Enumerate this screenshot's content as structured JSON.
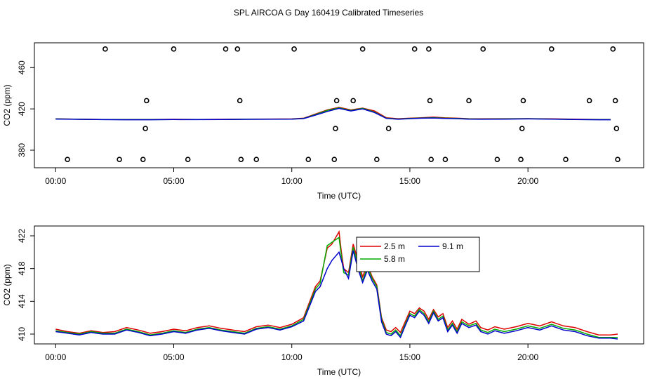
{
  "title": "SPL AIRCOA G  Day 160419  Calibrated Timeseries",
  "colors": {
    "h2_5": "#dd0000",
    "h5_8": "#00aa00",
    "h9_1": "#0000cc",
    "axis": "#000000"
  },
  "chart_data": [
    {
      "type": "line",
      "title": "SPL AIRCOA G  Day 160419  Calibrated Timeseries",
      "xlabel": "Time (UTC)",
      "ylabel": "CO2 (ppm)",
      "xlim": [
        -0.9,
        24.9
      ],
      "ylim": [
        363,
        484
      ],
      "x_ticks": [
        0,
        5,
        10,
        15,
        20
      ],
      "x_tick_labels": [
        "00:00",
        "05:00",
        "10:00",
        "15:00",
        "20:00"
      ],
      "y_ticks": [
        380,
        420,
        460
      ],
      "y_tick_labels": [
        "380",
        "420",
        "460"
      ],
      "series": [
        {
          "name": "2.5 m",
          "color": "#dd0000",
          "x": [
            0,
            1,
            2,
            3,
            4,
            5,
            6,
            7,
            8,
            9,
            10,
            10.5,
            11,
            11.5,
            12,
            12.5,
            13,
            13.5,
            14,
            14.5,
            15,
            15.5,
            16,
            16.5,
            17,
            17.5,
            18,
            19,
            20,
            21,
            22,
            23,
            23.5
          ],
          "y": [
            410.4,
            410,
            409.8,
            409.7,
            409.8,
            409.9,
            409.8,
            409.9,
            410.1,
            410.2,
            410.3,
            411,
            415,
            419,
            421.5,
            419,
            420.8,
            418,
            411.5,
            410.5,
            411,
            411.5,
            412,
            411.3,
            411,
            410.5,
            410.4,
            410.5,
            410.6,
            410.4,
            410,
            409.8,
            409.8
          ]
        },
        {
          "name": "5.8 m",
          "color": "#00aa00",
          "x": [
            0,
            1,
            2,
            3,
            4,
            5,
            6,
            7,
            8,
            9,
            10,
            10.5,
            11,
            11.5,
            12,
            12.5,
            13,
            13.5,
            14,
            14.5,
            15,
            15.5,
            16,
            16.5,
            17,
            17.5,
            18,
            19,
            20,
            21,
            22,
            23,
            23.5
          ],
          "y": [
            410.3,
            410,
            409.7,
            409.6,
            409.6,
            409.8,
            409.7,
            409.8,
            410,
            410.1,
            410.2,
            410.8,
            414.5,
            418.5,
            421,
            418.5,
            420.5,
            417,
            411,
            410.2,
            410.8,
            411.2,
            411.5,
            411,
            410.7,
            410.3,
            410.2,
            410.3,
            410.5,
            410.2,
            409.8,
            409.6,
            409.6
          ]
        },
        {
          "name": "9.1 m",
          "color": "#0000cc",
          "x": [
            0,
            1,
            2,
            3,
            4,
            5,
            6,
            7,
            8,
            9,
            10,
            10.5,
            11,
            11.5,
            12,
            12.5,
            13,
            13.5,
            14,
            14.5,
            15,
            15.5,
            16,
            16.5,
            17,
            17.5,
            18,
            19,
            20,
            21,
            22,
            23,
            23.5
          ],
          "y": [
            410.2,
            409.9,
            409.6,
            409.5,
            409.5,
            409.7,
            409.6,
            409.7,
            409.9,
            410,
            410.1,
            410.6,
            414,
            417.5,
            420.5,
            418,
            420,
            416.5,
            410.8,
            410,
            410.5,
            411,
            411.2,
            410.8,
            410.5,
            410.1,
            410,
            410.1,
            410.3,
            410.1,
            409.7,
            409.5,
            409.5
          ]
        }
      ],
      "points": {
        "x": [
          0.5,
          2.1,
          2.7,
          3.7,
          3.8,
          3.85,
          5.0,
          5.6,
          7.2,
          7.7,
          7.8,
          7.85,
          8.5,
          10.1,
          10.7,
          11.8,
          11.85,
          11.9,
          12.6,
          13.0,
          13.6,
          14.1,
          15.2,
          15.8,
          15.85,
          15.9,
          16.5,
          17.5,
          18.1,
          18.7,
          19.7,
          19.75,
          19.8,
          21.0,
          21.6,
          22.6,
          23.6,
          23.7,
          23.75,
          23.8
        ],
        "y": [
          371,
          478,
          371,
          371,
          401,
          428,
          478,
          371,
          478,
          478,
          428,
          371,
          371,
          478,
          371,
          371,
          401,
          428,
          428,
          478,
          371,
          401,
          478,
          478,
          428,
          371,
          371,
          428,
          478,
          371,
          371,
          401,
          428,
          478,
          371,
          428,
          478,
          428,
          401,
          371
        ]
      }
    },
    {
      "type": "line",
      "xlabel": "Time (UTC)",
      "ylabel": "CO2 (ppm)",
      "xlim": [
        -0.9,
        24.9
      ],
      "ylim": [
        408.8,
        423.2
      ],
      "x_ticks": [
        0,
        5,
        10,
        15,
        20
      ],
      "x_tick_labels": [
        "00:00",
        "05:00",
        "10:00",
        "15:00",
        "20:00"
      ],
      "y_ticks": [
        410,
        414,
        418,
        422
      ],
      "y_tick_labels": [
        "410",
        "414",
        "418",
        "422"
      ],
      "legend": {
        "position": "top-center",
        "entries": [
          "2.5 m",
          "9.1 m",
          "5.8 m"
        ]
      },
      "series": [
        {
          "name": "2.5 m",
          "color": "#dd0000",
          "x": [
            0,
            0.5,
            1,
            1.5,
            2,
            2.5,
            3,
            3.5,
            4,
            4.5,
            5,
            5.5,
            6,
            6.5,
            7,
            7.5,
            8,
            8.5,
            9,
            9.5,
            10,
            10.5,
            11,
            11.2,
            11.5,
            11.7,
            12,
            12.1,
            12.2,
            12.4,
            12.6,
            12.8,
            13,
            13.2,
            13.4,
            13.6,
            13.8,
            14.0,
            14.2,
            14.4,
            14.6,
            14.8,
            15.0,
            15.2,
            15.4,
            15.6,
            15.8,
            16.0,
            16.2,
            16.4,
            16.6,
            16.8,
            17.0,
            17.2,
            17.5,
            17.8,
            18,
            18.3,
            18.6,
            19,
            19.5,
            20,
            20.5,
            21,
            21.5,
            22,
            22.5,
            23,
            23.5,
            23.8
          ],
          "y": [
            410.6,
            410.3,
            410.1,
            410.4,
            410.2,
            410.3,
            410.8,
            410.5,
            410.1,
            410.3,
            410.6,
            410.4,
            410.8,
            411,
            410.7,
            410.5,
            410.3,
            410.9,
            411.1,
            410.8,
            411.2,
            412,
            415.8,
            416.5,
            420.5,
            421,
            422.5,
            420,
            418,
            417.5,
            421,
            419,
            417,
            418.5,
            417,
            416,
            412,
            410.5,
            410.3,
            410.8,
            410.2,
            411.5,
            412.8,
            412.5,
            413.2,
            412.8,
            411.8,
            413,
            412.1,
            412.5,
            410.8,
            411.6,
            410.6,
            411.8,
            411.2,
            411.6,
            410.8,
            410.5,
            410.9,
            410.6,
            410.9,
            411.3,
            411,
            411.5,
            411,
            410.8,
            410.3,
            409.9,
            409.9,
            410.0
          ]
        },
        {
          "name": "5.8 m",
          "color": "#00aa00",
          "x": [
            0,
            0.5,
            1,
            1.5,
            2,
            2.5,
            3,
            3.5,
            4,
            4.5,
            5,
            5.5,
            6,
            6.5,
            7,
            7.5,
            8,
            8.5,
            9,
            9.5,
            10,
            10.5,
            11,
            11.2,
            11.5,
            11.7,
            12,
            12.1,
            12.2,
            12.4,
            12.6,
            12.8,
            13,
            13.2,
            13.4,
            13.6,
            13.8,
            14.0,
            14.2,
            14.4,
            14.6,
            14.8,
            15.0,
            15.2,
            15.4,
            15.6,
            15.8,
            16.0,
            16.2,
            16.4,
            16.6,
            16.8,
            17.0,
            17.2,
            17.5,
            17.8,
            18,
            18.3,
            18.6,
            19,
            19.5,
            20,
            20.5,
            21,
            21.5,
            22,
            22.5,
            23,
            23.5,
            23.8
          ],
          "y": [
            410.4,
            410.2,
            410,
            410.3,
            410.1,
            410.1,
            410.6,
            410.3,
            409.9,
            410.1,
            410.4,
            410.2,
            410.6,
            410.8,
            410.5,
            410.3,
            410.1,
            410.7,
            410.9,
            410.6,
            411,
            411.8,
            415.5,
            416.2,
            420.8,
            421.2,
            421.8,
            419.5,
            417.5,
            417.2,
            420.6,
            418.5,
            416.5,
            418.2,
            416.8,
            415.8,
            411.8,
            410.2,
            410,
            410.5,
            409.8,
            411.2,
            412.5,
            412.2,
            413,
            412.5,
            411.5,
            412.8,
            411.8,
            412.2,
            410.5,
            411.3,
            410.3,
            411.5,
            411,
            411.3,
            410.5,
            410.2,
            410.6,
            410.3,
            410.6,
            411,
            410.7,
            411.2,
            410.7,
            410.5,
            410,
            409.6,
            409.6,
            409.6
          ]
        },
        {
          "name": "9.1 m",
          "color": "#0000cc",
          "x": [
            0,
            0.5,
            1,
            1.5,
            2,
            2.5,
            3,
            3.5,
            4,
            4.5,
            5,
            5.5,
            6,
            6.5,
            7,
            7.5,
            8,
            8.5,
            9,
            9.5,
            10,
            10.5,
            11,
            11.2,
            11.5,
            11.7,
            12,
            12.1,
            12.2,
            12.4,
            12.6,
            12.8,
            13,
            13.2,
            13.4,
            13.6,
            13.8,
            14.0,
            14.2,
            14.4,
            14.6,
            14.8,
            15.0,
            15.2,
            15.4,
            15.6,
            15.8,
            16.0,
            16.2,
            16.4,
            16.6,
            16.8,
            17.0,
            17.2,
            17.5,
            17.8,
            18,
            18.3,
            18.6,
            19,
            19.5,
            20,
            20.5,
            21,
            21.5,
            22,
            22.5,
            23,
            23.5,
            23.8
          ],
          "y": [
            410.3,
            410.1,
            409.9,
            410.2,
            410,
            410,
            410.5,
            410.2,
            409.8,
            410,
            410.3,
            410.1,
            410.5,
            410.7,
            410.4,
            410.2,
            410,
            410.6,
            410.8,
            410.5,
            410.9,
            411.6,
            415.2,
            415.8,
            418,
            419,
            420,
            419,
            418,
            416.8,
            420.2,
            418,
            416.3,
            417.8,
            416.5,
            415.5,
            411.5,
            410,
            409.8,
            410.3,
            409.6,
            411,
            412.3,
            412,
            412.8,
            412.3,
            411.3,
            412.6,
            411.6,
            412,
            410.3,
            411.1,
            410.1,
            411.3,
            410.8,
            411.1,
            410.3,
            410,
            410.4,
            410.1,
            410.4,
            410.8,
            410.5,
            411,
            410.5,
            410.3,
            409.8,
            409.5,
            409.5,
            409.4
          ]
        }
      ]
    }
  ]
}
